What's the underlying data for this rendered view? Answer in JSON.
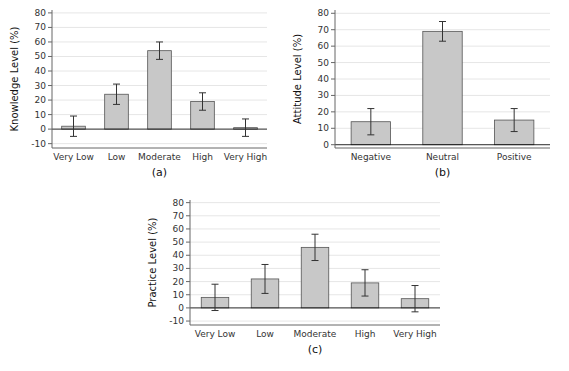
{
  "chart_data": [
    {
      "type": "bar",
      "xlabel": "(a)",
      "ylabel": "Knowledge Level (%)",
      "categories": [
        "Very Low",
        "Low",
        "Moderate",
        "High",
        "Very High"
      ],
      "values": [
        2,
        24,
        54,
        19,
        1
      ],
      "errors": [
        7,
        7,
        6,
        6,
        6
      ],
      "color": "#c8c8c8",
      "ylim": [
        -13,
        82
      ],
      "yticks": [
        -10,
        0,
        10,
        20,
        30,
        40,
        50,
        60,
        70,
        80
      ]
    },
    {
      "type": "bar",
      "xlabel": "(b)",
      "ylabel": "Attitude Level (%)",
      "categories": [
        "Negative",
        "Neutral",
        "Positive"
      ],
      "values": [
        14,
        69,
        15
      ],
      "errors": [
        8,
        6,
        7
      ],
      "color": "#c8c8c8",
      "ylim": [
        -2,
        82
      ],
      "yticks": [
        0,
        10,
        20,
        30,
        40,
        50,
        60,
        70,
        80
      ]
    },
    {
      "type": "bar",
      "xlabel": "(c)",
      "ylabel": "Practice Level (%)",
      "categories": [
        "Very Low",
        "Low",
        "Moderate",
        "High",
        "Very High"
      ],
      "values": [
        8,
        22,
        46,
        19,
        7
      ],
      "errors": [
        10,
        11,
        10,
        10,
        10
      ],
      "color": "#c8c8c8",
      "ylim": [
        -13,
        82
      ],
      "yticks": [
        -10,
        0,
        10,
        20,
        30,
        40,
        50,
        60,
        70,
        80
      ]
    }
  ]
}
